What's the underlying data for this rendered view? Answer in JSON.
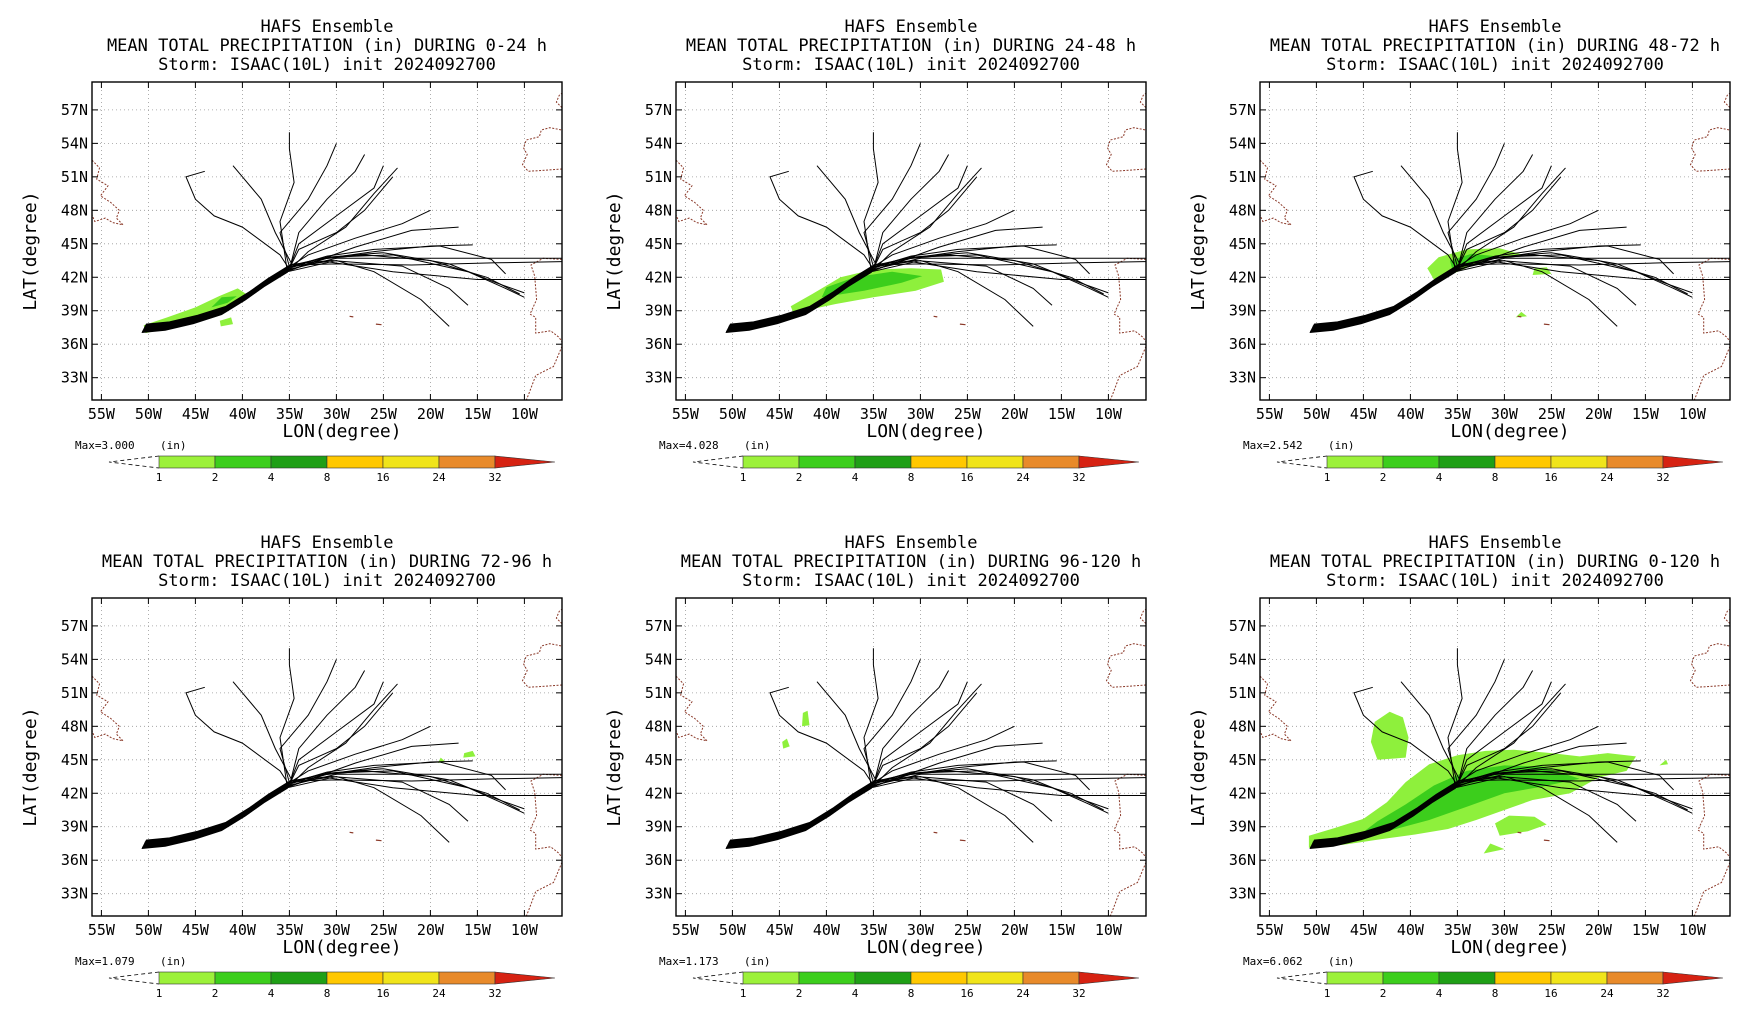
{
  "title_line1": "HAFS Ensemble",
  "storm_line": "Storm: ISAAC(10L) init 2024092700",
  "xlabel": "LON(degree)",
  "ylabel": "LAT(degree)",
  "units_label": "(in)",
  "lat_ticks": [
    "57N",
    "54N",
    "51N",
    "48N",
    "45N",
    "42N",
    "39N",
    "36N",
    "33N"
  ],
  "lon_ticks": [
    "55W",
    "50W",
    "45W",
    "40W",
    "35W",
    "30W",
    "25W",
    "20W",
    "15W",
    "10W"
  ],
  "colorbar": {
    "labels": [
      "1",
      "2",
      "4",
      "8",
      "16",
      "24",
      "32"
    ],
    "colors": [
      "#9cf13a",
      "#3cce1c",
      "#1f9f16",
      "#ffc800",
      "#f0e41a",
      "#e88a2a",
      "#d62212"
    ]
  },
  "colors": {
    "track": "#000000",
    "coast": "#8b3a2a",
    "grid": "#9a9a9a",
    "rain_light": "#8ef03c",
    "rain_medium": "#3cce1c"
  },
  "panels": [
    {
      "period": "MEAN TOTAL PRECIPITATION (in) DURING  0-24 h",
      "max": "Max=3.000",
      "rain": "p0"
    },
    {
      "period": "MEAN TOTAL PRECIPITATION (in) DURING 24-48 h",
      "max": "Max=4.028",
      "rain": "p1"
    },
    {
      "period": "MEAN TOTAL PRECIPITATION (in) DURING 48-72 h",
      "max": "Max=2.542",
      "rain": "p2"
    },
    {
      "period": "MEAN TOTAL PRECIPITATION (in) DURING 72-96 h",
      "max": "Max=1.079",
      "rain": "p3"
    },
    {
      "period": "MEAN TOTAL PRECIPITATION (in) DURING 96-120 h",
      "max": "Max=1.173",
      "rain": "p4"
    },
    {
      "period": "MEAN TOTAL PRECIPITATION (in) DURING 0-120 h",
      "max": "Max=6.062",
      "rain": "p5"
    }
  ]
}
